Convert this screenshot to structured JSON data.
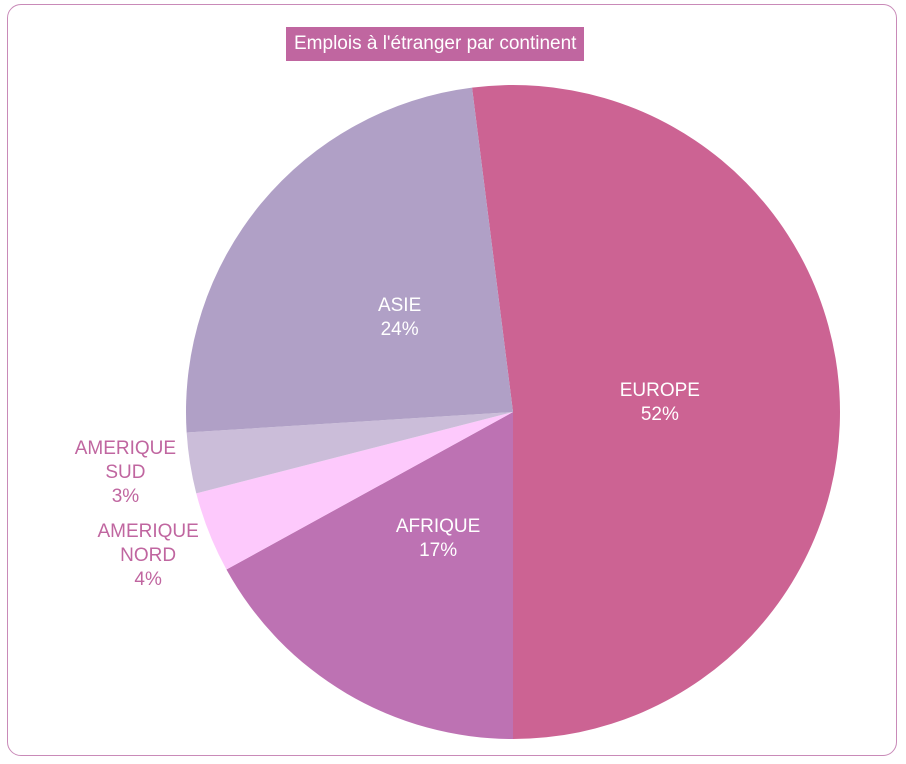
{
  "chart_data": {
    "type": "pie",
    "title": "Emplois à l'étranger par continent",
    "categories": [
      "EUROPE",
      "AFRIQUE",
      "AMERIQUE NORD",
      "AMERIQUE SUD",
      "ASIE"
    ],
    "values": [
      52,
      17,
      4,
      3,
      24
    ],
    "value_labels": [
      "52%",
      "17%",
      "4%",
      "3%",
      "24%"
    ],
    "colors": [
      "#cc6393",
      "#bd72b3",
      "#fdc9fc",
      "#cbbdd9",
      "#b0a0c6"
    ]
  }
}
